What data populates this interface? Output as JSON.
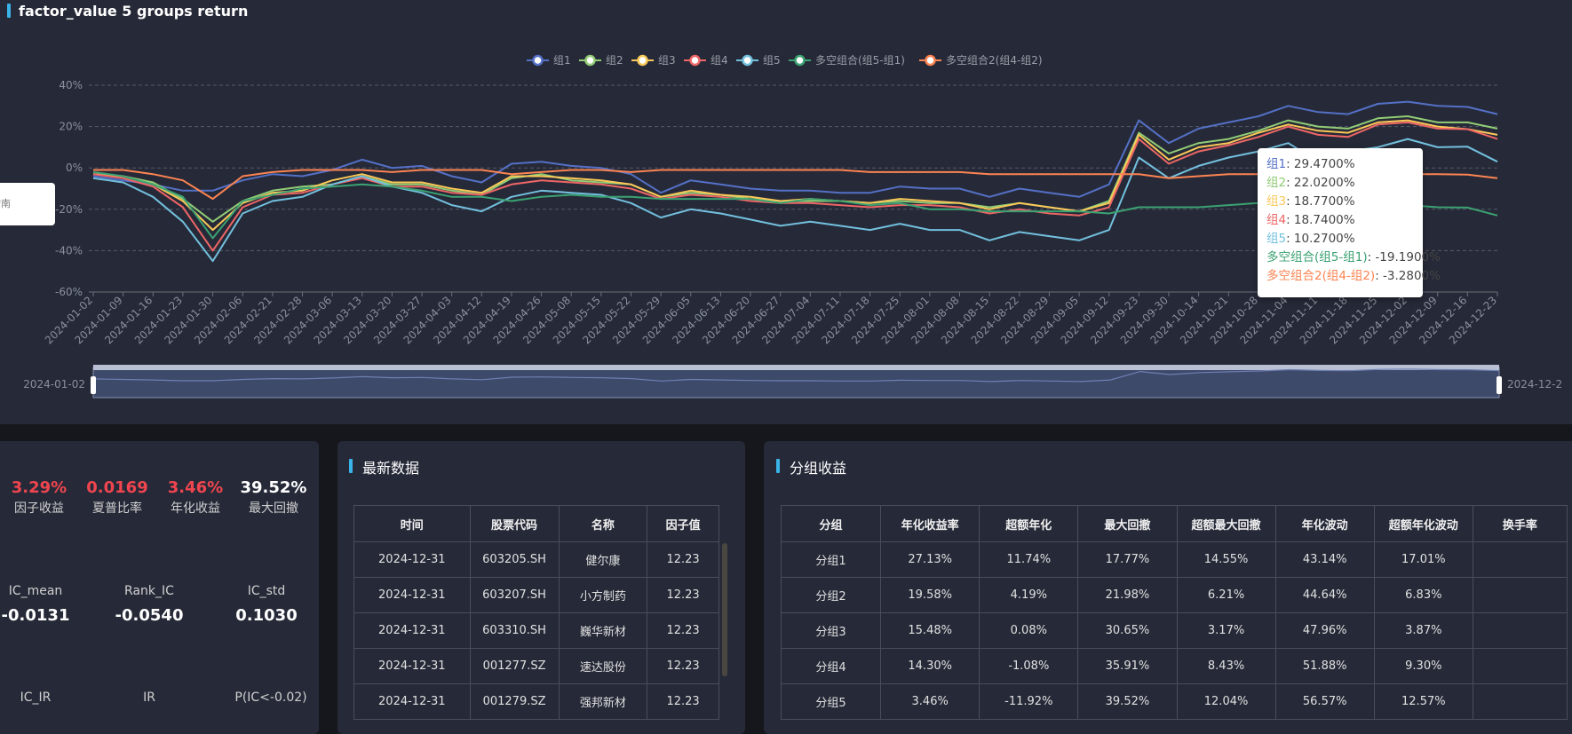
{
  "page_title": "factor_value 5 groups return",
  "left_popup_text": "指南",
  "chart_data": {
    "type": "line",
    "title": "",
    "xlabel": "",
    "ylabel": "",
    "ylim": [
      -60,
      40
    ],
    "yticks": [
      "40%",
      "20%",
      "0%",
      "-20%",
      "-40%",
      "-60%"
    ],
    "grid": true,
    "legend_position": "top-center",
    "x": [
      "2024-01-02",
      "2024-01-09",
      "2024-01-16",
      "2024-01-23",
      "2024-01-30",
      "2024-02-06",
      "2024-02-21",
      "2024-02-28",
      "2024-03-06",
      "2024-03-13",
      "2024-03-20",
      "2024-03-27",
      "2024-04-03",
      "2024-04-12",
      "2024-04-19",
      "2024-04-26",
      "2024-05-08",
      "2024-05-15",
      "2024-05-22",
      "2024-05-29",
      "2024-06-05",
      "2024-06-13",
      "2024-06-20",
      "2024-06-27",
      "2024-07-04",
      "2024-07-11",
      "2024-07-18",
      "2024-07-25",
      "2024-08-01",
      "2024-08-08",
      "2024-08-15",
      "2024-08-22",
      "2024-08-29",
      "2024-09-05",
      "2024-09-12",
      "2024-09-23",
      "2024-09-30",
      "2024-10-14",
      "2024-10-21",
      "2024-10-28",
      "2024-11-04",
      "2024-11-11",
      "2024-11-18",
      "2024-11-25",
      "2024-12-02",
      "2024-12-09",
      "2024-12-16",
      "2024-12-23"
    ],
    "series": [
      {
        "name": "组1",
        "color": "#5470c6",
        "values": [
          -4,
          -6,
          -8,
          -11,
          -11,
          -6,
          -3,
          -4,
          -1,
          4,
          0,
          1,
          -4,
          -7,
          2,
          3,
          1,
          0,
          -3,
          -12,
          -6,
          -8,
          -10,
          -11,
          -11,
          -12,
          -12,
          -9,
          -10,
          -10,
          -14,
          -10,
          -12,
          -14,
          -8,
          23,
          12,
          19,
          22,
          25,
          30,
          27,
          26,
          31,
          32,
          30,
          29.47,
          26
        ]
      },
      {
        "name": "组2",
        "color": "#91cc75",
        "values": [
          -3,
          -4,
          -7,
          -15,
          -26,
          -16,
          -11,
          -9,
          -8,
          -4,
          -8,
          -8,
          -11,
          -13,
          -5,
          -3,
          -6,
          -7,
          -8,
          -14,
          -12,
          -13,
          -15,
          -16,
          -16,
          -16,
          -17,
          -16,
          -17,
          -17,
          -19,
          -17,
          -19,
          -21,
          -16,
          17,
          7,
          12,
          14,
          18,
          23,
          20,
          19,
          24,
          25,
          22,
          22.02,
          19
        ]
      },
      {
        "name": "组3",
        "color": "#fac858",
        "values": [
          -3,
          -4,
          -8,
          -16,
          -30,
          -17,
          -12,
          -11,
          -6,
          -3,
          -7,
          -7,
          -10,
          -12,
          -4,
          -4,
          -5,
          -6,
          -8,
          -14,
          -11,
          -13,
          -14,
          -16,
          -15,
          -16,
          -17,
          -15,
          -16,
          -17,
          -20,
          -17,
          -19,
          -21,
          -17,
          16,
          4,
          10,
          12,
          17,
          21,
          18,
          17,
          22,
          23,
          20,
          18.77,
          16
        ]
      },
      {
        "name": "组4",
        "color": "#ee6666",
        "values": [
          -3,
          -5,
          -9,
          -19,
          -40,
          -19,
          -13,
          -12,
          -8,
          -5,
          -9,
          -9,
          -12,
          -13,
          -8,
          -6,
          -7,
          -8,
          -10,
          -15,
          -13,
          -14,
          -16,
          -17,
          -17,
          -18,
          -19,
          -18,
          -18,
          -19,
          -22,
          -20,
          -22,
          -23,
          -19,
          14,
          2,
          8,
          11,
          15,
          20,
          16,
          15,
          21,
          22,
          19,
          18.74,
          14
        ]
      },
      {
        "name": "组5",
        "color": "#73c0de",
        "values": [
          -5,
          -7,
          -14,
          -26,
          -45,
          -22,
          -16,
          -14,
          -8,
          -4,
          -9,
          -12,
          -18,
          -21,
          -14,
          -11,
          -12,
          -13,
          -17,
          -24,
          -20,
          -22,
          -25,
          -28,
          -26,
          -28,
          -30,
          -27,
          -30,
          -30,
          -35,
          -31,
          -33,
          -35,
          -30,
          5,
          -5,
          1,
          5,
          8,
          12,
          3,
          8,
          10,
          14,
          10,
          10.27,
          3
        ]
      },
      {
        "name": "多空组合(组5-组1)",
        "color": "#3ba272",
        "values": [
          -2,
          -4,
          -8,
          -14,
          -34,
          -16,
          -13,
          -10,
          -9,
          -8,
          -9,
          -11,
          -14,
          -14,
          -16,
          -14,
          -13,
          -14,
          -14,
          -15,
          -15,
          -15,
          -15,
          -17,
          -15,
          -16,
          -18,
          -17,
          -20,
          -20,
          -21,
          -21,
          -21,
          -21,
          -22,
          -19,
          -19,
          -19,
          -18,
          -17,
          -17,
          -18,
          -18,
          -18,
          -18,
          -19,
          -19.19,
          -23
        ]
      },
      {
        "name": "多空组合2(组4-组2)",
        "color": "#fc8452",
        "values": [
          -1,
          -1,
          -3,
          -6,
          -15,
          -4,
          -2,
          -1,
          -1,
          -1,
          -2,
          -1,
          -1,
          -1,
          -3,
          -2,
          -1,
          -1,
          -2,
          -1,
          -1,
          -1,
          -1,
          -1,
          -1,
          -1,
          -2,
          -2,
          -2,
          -2,
          -3,
          -3,
          -3,
          -3,
          -3,
          -3,
          -5,
          -4,
          -3,
          -3,
          -3,
          -4,
          -4,
          -3,
          -3,
          -3,
          -3.28,
          -5
        ]
      }
    ],
    "zoom": {
      "start_label": "2024-01-02",
      "end_label": "2024-12-2"
    }
  },
  "tooltip": {
    "rows": [
      {
        "label": "组1",
        "value": "29.4700%",
        "color": "#5470c6"
      },
      {
        "label": "组2",
        "value": "22.0200%",
        "color": "#91cc75"
      },
      {
        "label": "组3",
        "value": "18.7700%",
        "color": "#fac858"
      },
      {
        "label": "组4",
        "value": "18.7400%",
        "color": "#ee6666"
      },
      {
        "label": "组5",
        "value": "10.2700%",
        "color": "#73c0de"
      },
      {
        "label": "多空组合(组5-组1)",
        "value": "-19.1900%",
        "color": "#3ba272"
      },
      {
        "label": "多空组合2(组4-组2)",
        "value": "-3.2800%",
        "color": "#fc8452"
      }
    ]
  },
  "metrics": {
    "factor_return": {
      "value": "3.29%",
      "label": "因子收益"
    },
    "sharpe": {
      "value": "0.0169",
      "label": "夏普比率"
    },
    "annual_return": {
      "value": "3.46%",
      "label": "年化收益"
    },
    "max_drawdown": {
      "value": "39.52%",
      "label": "最大回撤"
    },
    "ic_mean": {
      "label": "IC_mean",
      "value": "-0.0131"
    },
    "rank_ic": {
      "label": "Rank_IC",
      "value": "-0.0540"
    },
    "ic_std": {
      "label": "IC_std",
      "value": "0.1030"
    },
    "ic_ir": {
      "label": "IC_IR"
    },
    "ir": {
      "label": "IR"
    },
    "p_ic": {
      "label": "P(IC<-0.02)"
    }
  },
  "latest": {
    "title": "最新数据",
    "headers": [
      "时间",
      "股票代码",
      "名称",
      "因子值"
    ],
    "rows": [
      [
        "2024-12-31",
        "603205.SH",
        "健尔康",
        "12.23"
      ],
      [
        "2024-12-31",
        "603207.SH",
        "小方制药",
        "12.23"
      ],
      [
        "2024-12-31",
        "603310.SH",
        "巍华新材",
        "12.23"
      ],
      [
        "2024-12-31",
        "001277.SZ",
        "速达股份",
        "12.23"
      ],
      [
        "2024-12-31",
        "001279.SZ",
        "强邦新材",
        "12.23"
      ]
    ]
  },
  "group_returns": {
    "title": "分组收益",
    "headers": [
      "分组",
      "年化收益率",
      "超额年化",
      "最大回撤",
      "超额最大回撤",
      "年化波动",
      "超额年化波动",
      "换手率"
    ],
    "rows": [
      [
        "分组1",
        "27.13%",
        "11.74%",
        "17.77%",
        "14.55%",
        "43.14%",
        "17.01%",
        ""
      ],
      [
        "分组2",
        "19.58%",
        "4.19%",
        "21.98%",
        "6.21%",
        "44.64%",
        "6.83%",
        ""
      ],
      [
        "分组3",
        "15.48%",
        "0.08%",
        "30.65%",
        "3.17%",
        "47.96%",
        "3.87%",
        ""
      ],
      [
        "分组4",
        "14.30%",
        "-1.08%",
        "35.91%",
        "8.43%",
        "51.88%",
        "9.30%",
        ""
      ],
      [
        "分组5",
        "3.46%",
        "-11.92%",
        "39.52%",
        "12.04%",
        "56.57%",
        "12.57%",
        ""
      ]
    ]
  }
}
